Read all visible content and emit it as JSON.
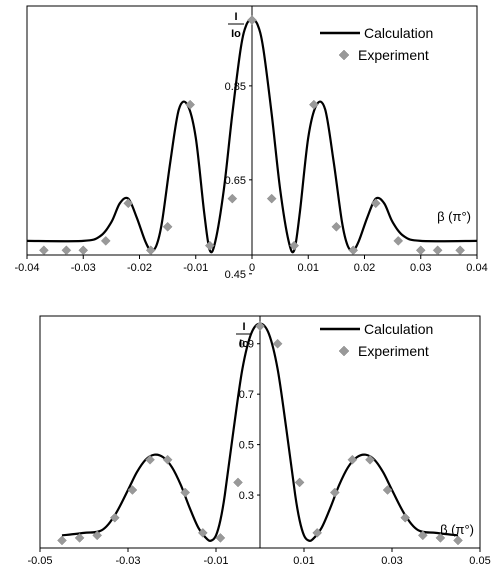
{
  "chart_data": [
    {
      "type": "line",
      "ylabel_num": "I",
      "ylabel_den": "Io",
      "xlabel": "β (π°)",
      "xlim": [
        -0.04,
        0.04
      ],
      "xticks": [
        "-0.04",
        "-0.03",
        "-0.02",
        "-0.01",
        "0",
        "0.01",
        "0.02",
        "0.03",
        "0.04"
      ],
      "ytick_labels": [
        {
          "value": 0.85,
          "label": "0.85"
        },
        {
          "value": 0.65,
          "label": "0.65"
        },
        {
          "value": 0.45,
          "label": "0.45"
        }
      ],
      "legend": [
        {
          "name": "Calculation",
          "marker": "line"
        },
        {
          "name": "Experiment",
          "marker": "diamond"
        }
      ],
      "series": [
        {
          "name": "Calculation",
          "color": "#000000",
          "x": [
            -0.04,
            -0.03,
            -0.027,
            -0.025,
            -0.0235,
            -0.022,
            -0.0205,
            -0.019,
            -0.018,
            -0.017,
            -0.016,
            -0.0145,
            -0.013,
            -0.0115,
            -0.01,
            -0.0085,
            -0.0075,
            -0.0065,
            -0.005,
            -0.0035,
            -0.002,
            -0.001,
            0,
            0.001,
            0.002,
            0.0035,
            0.005,
            0.0065,
            0.0075,
            0.0085,
            0.01,
            0.0115,
            0.013,
            0.0145,
            0.016,
            0.017,
            0.018,
            0.019,
            0.0205,
            0.022,
            0.0235,
            0.025,
            0.027,
            0.03,
            0.04
          ],
          "y": [
            0.52,
            0.52,
            0.53,
            0.56,
            0.6,
            0.61,
            0.57,
            0.52,
            0.5,
            0.51,
            0.56,
            0.69,
            0.8,
            0.81,
            0.74,
            0.58,
            0.5,
            0.52,
            0.63,
            0.79,
            0.93,
            0.98,
            0.99,
            0.98,
            0.93,
            0.79,
            0.63,
            0.52,
            0.5,
            0.58,
            0.74,
            0.81,
            0.8,
            0.69,
            0.56,
            0.51,
            0.5,
            0.52,
            0.57,
            0.61,
            0.6,
            0.56,
            0.53,
            0.52,
            0.52
          ]
        },
        {
          "name": "Experiment",
          "color": "#999999",
          "x": [
            -0.037,
            -0.033,
            -0.03,
            -0.026,
            -0.022,
            -0.018,
            -0.015,
            -0.011,
            -0.0075,
            -0.0035,
            0,
            0.0035,
            0.0075,
            0.011,
            0.015,
            0.018,
            0.022,
            0.026,
            0.03,
            0.033,
            0.037
          ],
          "y": [
            0.5,
            0.5,
            0.5,
            0.52,
            0.6,
            0.5,
            0.55,
            0.81,
            0.51,
            0.61,
            0.99,
            0.61,
            0.51,
            0.81,
            0.55,
            0.5,
            0.6,
            0.52,
            0.5,
            0.5,
            0.5
          ]
        }
      ]
    },
    {
      "type": "line",
      "ylabel_num": "I",
      "ylabel_den": "Io",
      "xlabel": "β (π°)",
      "xlim": [
        -0.05,
        0.05
      ],
      "xticks": [
        "-0.05",
        "-0.03",
        "-0.01",
        "0.01",
        "0.03",
        "0.05"
      ],
      "ytick_labels": [
        {
          "value": 0.9,
          "label": "0.9"
        },
        {
          "value": 0.7,
          "label": "0.7"
        },
        {
          "value": 0.5,
          "label": "0.5"
        },
        {
          "value": 0.3,
          "label": "0.3"
        }
      ],
      "legend": [
        {
          "name": "Calculation",
          "marker": "line"
        },
        {
          "name": "Experiment",
          "marker": "diamond"
        }
      ],
      "series": [
        {
          "name": "Calculation",
          "color": "#000000",
          "x": [
            -0.045,
            -0.04,
            -0.036,
            -0.033,
            -0.03,
            -0.028,
            -0.026,
            -0.024,
            -0.022,
            -0.02,
            -0.018,
            -0.016,
            -0.014,
            -0.012,
            -0.011,
            -0.01,
            -0.009,
            -0.008,
            -0.006,
            -0.004,
            -0.002,
            0,
            0.002,
            0.004,
            0.006,
            0.008,
            0.009,
            0.01,
            0.011,
            0.012,
            0.014,
            0.016,
            0.018,
            0.02,
            0.022,
            0.024,
            0.026,
            0.028,
            0.03,
            0.033,
            0.036,
            0.04,
            0.045
          ],
          "y": [
            0.14,
            0.15,
            0.16,
            0.22,
            0.32,
            0.39,
            0.44,
            0.46,
            0.45,
            0.41,
            0.34,
            0.25,
            0.17,
            0.125,
            0.12,
            0.14,
            0.2,
            0.3,
            0.56,
            0.8,
            0.94,
            0.98,
            0.94,
            0.8,
            0.56,
            0.3,
            0.2,
            0.14,
            0.12,
            0.125,
            0.17,
            0.25,
            0.34,
            0.41,
            0.45,
            0.46,
            0.44,
            0.39,
            0.32,
            0.22,
            0.16,
            0.15,
            0.14
          ]
        },
        {
          "name": "Experiment",
          "color": "#999999",
          "x": [
            -0.045,
            -0.041,
            -0.037,
            -0.033,
            -0.029,
            -0.025,
            -0.021,
            -0.017,
            -0.013,
            -0.009,
            -0.005,
            0,
            0.004,
            0.009,
            0.013,
            0.017,
            0.021,
            0.025,
            0.029,
            0.033,
            0.037,
            0.041,
            0.045
          ],
          "y": [
            0.12,
            0.13,
            0.14,
            0.21,
            0.32,
            0.44,
            0.44,
            0.31,
            0.15,
            0.13,
            0.35,
            0.97,
            0.9,
            0.35,
            0.15,
            0.31,
            0.44,
            0.44,
            0.32,
            0.21,
            0.14,
            0.13,
            0.12
          ]
        }
      ]
    }
  ]
}
